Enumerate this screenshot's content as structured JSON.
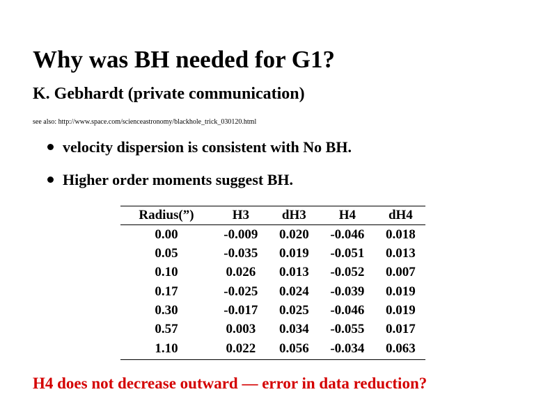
{
  "slide": {
    "title": "Why was BH needed for G1?",
    "subtitle": "K. Gebhardt (private communication)",
    "see_also": "see also: http://www.space.com/scienceastronomy/blackhole_trick_030120.html",
    "bullets": [
      "velocity dispersion is consistent with No BH.",
      "Higher order moments suggest BH."
    ],
    "table": {
      "header": [
        "Radius(”)",
        "H3",
        "dH3",
        "H4",
        "dH4"
      ],
      "rows": [
        [
          "0.00",
          "-0.009",
          "0.020",
          "-0.046",
          "0.018"
        ],
        [
          "0.05",
          "-0.035",
          "0.019",
          "-0.051",
          "0.013"
        ],
        [
          "0.10",
          "0.026",
          "0.013",
          "-0.052",
          "0.007"
        ],
        [
          "0.17",
          "-0.025",
          "0.024",
          "-0.039",
          "0.019"
        ],
        [
          "0.30",
          "-0.017",
          "0.025",
          "-0.046",
          "0.019"
        ],
        [
          "0.57",
          "0.003",
          "0.034",
          "-0.055",
          "0.017"
        ],
        [
          "1.10",
          "0.022",
          "0.056",
          "-0.034",
          "0.063"
        ]
      ]
    },
    "note": "H4 does not decrease outward — error in data reduction?"
  }
}
